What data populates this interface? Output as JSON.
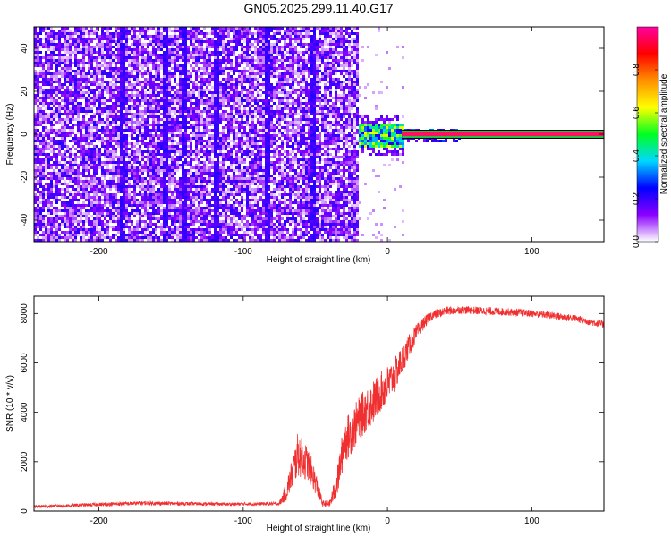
{
  "title": "GN05.2025.299.11.40.G17",
  "chart_data": [
    {
      "type": "heatmap",
      "xlabel": "Height of straight line (km)",
      "ylabel": "Frequency (Hz)",
      "xlim": [
        -245,
        150
      ],
      "ylim": [
        -50,
        50
      ],
      "xticks": [
        -200,
        -100,
        0,
        100
      ],
      "xtick_labels": [
        "-200",
        "-100",
        "0",
        "100"
      ],
      "yticks": [
        -40,
        -20,
        0,
        20,
        40
      ],
      "ytick_labels": [
        "-40",
        "-20",
        "0",
        "20",
        "40"
      ],
      "colorbar": {
        "label": "Normalized spectral amplitude",
        "range": [
          0,
          1
        ],
        "ticks": [
          0.0,
          0.2,
          0.4,
          0.6,
          0.8
        ],
        "tick_labels": [
          "0.0",
          "0.2",
          "0.4",
          "0.6",
          "0.8"
        ],
        "colormap": [
          "#ffffff",
          "#8a00ff",
          "#0000ff",
          "#00d8ff",
          "#00ff20",
          "#ffff00",
          "#ff9000",
          "#ff0000",
          "#ff00a0"
        ]
      },
      "regions": [
        {
          "name": "noise",
          "x": [
            -245,
            -20
          ],
          "freq": [
            -50,
            50
          ],
          "amplitude": 0.1
        },
        {
          "name": "transition",
          "x": [
            -22,
            10
          ],
          "freq": [
            -6,
            10
          ],
          "amplitude": 0.45
        },
        {
          "name": "carrier",
          "x": [
            10,
            150
          ],
          "freq": [
            -0.5,
            0.5
          ],
          "amplitude": 0.95
        }
      ]
    },
    {
      "type": "line",
      "xlabel": "Height of straight line (km)",
      "ylabel": "SNR (10 * v/v)",
      "xlim": [
        -245,
        150
      ],
      "ylim": [
        0,
        8700
      ],
      "xticks": [
        -200,
        -100,
        0,
        100
      ],
      "xtick_labels": [
        "-200",
        "-100",
        "0",
        "100"
      ],
      "yticks": [
        0,
        2000,
        4000,
        6000,
        8000
      ],
      "ytick_labels": [
        "0",
        "2000",
        "4000",
        "6000",
        "8000"
      ],
      "color": "#f03030",
      "series": [
        {
          "x": [
            -245,
            -170,
            -110,
            -75,
            -70,
            -62,
            -55,
            -50,
            -45,
            -40,
            -35,
            -30,
            -25,
            -20,
            -15,
            -10,
            -5,
            0,
            5,
            10,
            15,
            20,
            25,
            30,
            40,
            50,
            70,
            90,
            110,
            130,
            150
          ],
          "y": [
            180,
            320,
            280,
            300,
            800,
            2300,
            1900,
            1200,
            300,
            300,
            1100,
            2800,
            3200,
            3700,
            4100,
            4400,
            4800,
            5100,
            5500,
            6100,
            6700,
            7200,
            7600,
            7900,
            8100,
            8150,
            8100,
            8050,
            7950,
            7800,
            7550
          ],
          "noise": [
            60,
            80,
            60,
            70,
            400,
            900,
            700,
            500,
            120,
            150,
            600,
            900,
            900,
            900,
            900,
            900,
            800,
            800,
            700,
            600,
            450,
            350,
            250,
            200,
            180,
            160,
            160,
            150,
            150,
            150,
            150
          ]
        }
      ]
    }
  ]
}
